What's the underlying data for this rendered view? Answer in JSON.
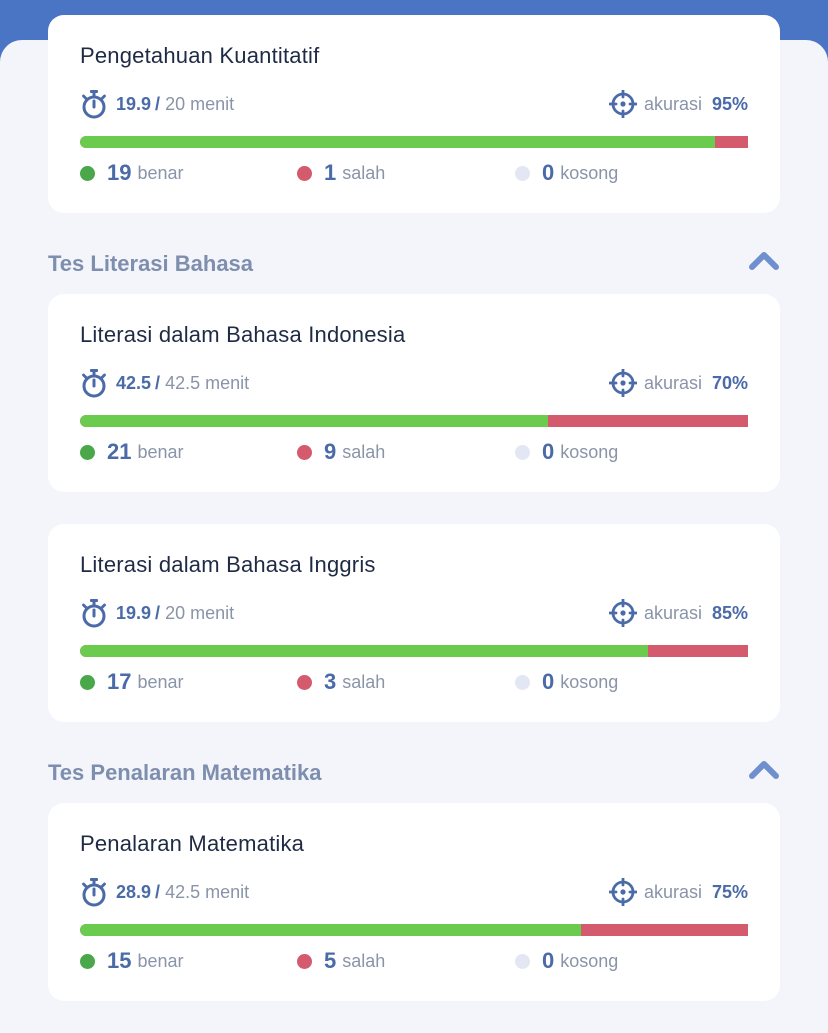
{
  "sections": [
    {
      "title": "Tes Literasi Bahasa"
    },
    {
      "title": "Tes Penalaran Matematika"
    }
  ],
  "cards": [
    {
      "title": "Pengetahuan Kuantitatif",
      "time_used": "19.9",
      "time_total": "20",
      "time_unit": "menit",
      "accuracy_label": "akurasi",
      "accuracy": "95%",
      "correct_fraction": 0.95,
      "correct": "19",
      "correct_label": "benar",
      "wrong": "1",
      "wrong_label": "salah",
      "empty": "0",
      "empty_label": "kosong"
    },
    {
      "title": "Literasi dalam Bahasa Indonesia",
      "time_used": "42.5",
      "time_total": "42.5",
      "time_unit": "menit",
      "accuracy_label": "akurasi",
      "accuracy": "70%",
      "correct_fraction": 0.7,
      "correct": "21",
      "correct_label": "benar",
      "wrong": "9",
      "wrong_label": "salah",
      "empty": "0",
      "empty_label": "kosong"
    },
    {
      "title": "Literasi dalam Bahasa Inggris",
      "time_used": "19.9",
      "time_total": "20",
      "time_unit": "menit",
      "accuracy_label": "akurasi",
      "accuracy": "85%",
      "correct_fraction": 0.85,
      "correct": "17",
      "correct_label": "benar",
      "wrong": "3",
      "wrong_label": "salah",
      "empty": "0",
      "empty_label": "kosong"
    },
    {
      "title": "Penalaran Matematika",
      "time_used": "28.9",
      "time_total": "42.5",
      "time_unit": "menit",
      "accuracy_label": "akurasi",
      "accuracy": "75%",
      "correct_fraction": 0.75,
      "correct": "15",
      "correct_label": "benar",
      "wrong": "5",
      "wrong_label": "salah",
      "empty": "0",
      "empty_label": "kosong"
    }
  ],
  "colors": {
    "header_blue": "#4a74c4",
    "correct_green": "#6acb4f",
    "wrong_red": "#d45a6e",
    "empty_gray": "#e3e7f3",
    "accent_text": "#4a6aa8"
  },
  "icons": {
    "timer": "stopwatch-icon",
    "accuracy": "target-icon",
    "collapse": "chevron-up-icon"
  }
}
